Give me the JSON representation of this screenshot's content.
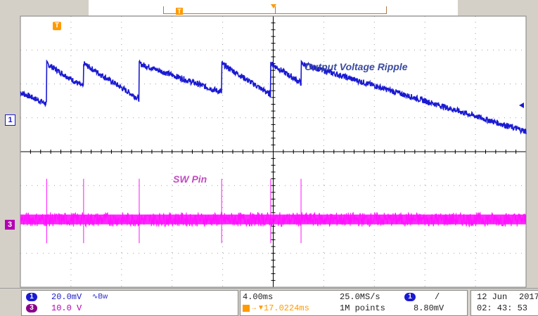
{
  "colors": {
    "ch1": "#1a1ad2",
    "ch3": "#ff10ff",
    "trigger": "#ff9a00",
    "grid": "#a0a0a0",
    "axis": "#000000",
    "background": "#ffffff"
  },
  "annotations": {
    "ch1_label": "Output Voltage Ripple",
    "ch3_label": "SW Pin"
  },
  "markers": {
    "trigger_marker": "T",
    "ch1_marker": "1",
    "ch3_marker": "3",
    "ch1_level_icon": "left-arrow-icon"
  },
  "status": {
    "ch1_number": "1",
    "ch1_scale": "20.0mV",
    "ch1_bw_icon": "bandwidth-limit-icon",
    "ch1_bw_text": "∿Bw",
    "ch3_number": "3",
    "ch3_scale": "10.0 V",
    "timebase": "4.00ms",
    "sample_rate": "25.0MS/s",
    "trigger_delay": "17.0224ms",
    "record_length": "1M points",
    "trigger_source": "1",
    "trigger_slope": "/",
    "trigger_level": "8.80mV",
    "date": "12 Jun",
    "year": "2017",
    "time": "02: 43: 53"
  },
  "waveform": {
    "switching_times_div": [
      0.52,
      1.25,
      2.35,
      3.98,
      4.95,
      5.55
    ],
    "ch1_edge_peak_div": [
      2.6,
      2.6,
      2.6,
      2.6,
      2.6,
      2.6
    ],
    "ch3_baseline_div": -2.0
  }
}
